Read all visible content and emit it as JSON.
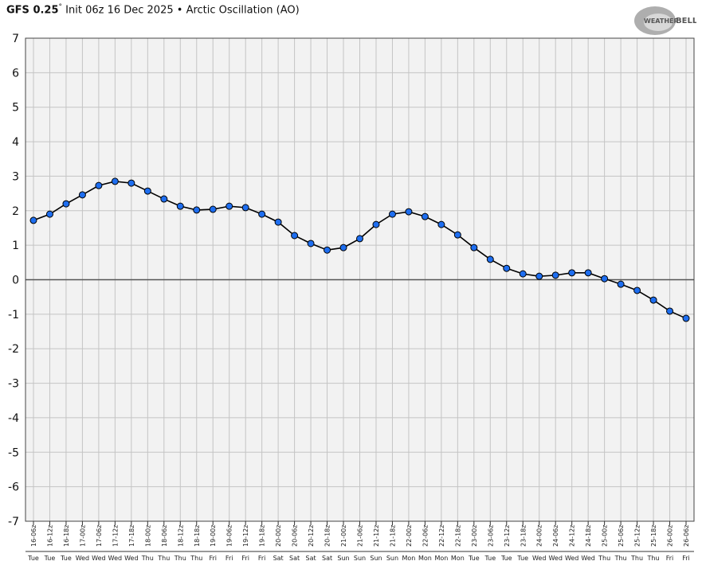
{
  "header": {
    "model": "GFS 0.25",
    "degree": "°",
    "init": "Init 06z 16 Dec 2025",
    "bullet": "•",
    "product": "Arctic Oscillation (AO)"
  },
  "logo": {
    "text": "WEATHERBELL"
  },
  "chart_data": {
    "type": "line",
    "title": "",
    "xlabel": "",
    "ylabel": "",
    "ylim": [
      -7,
      7
    ],
    "yticks": [
      7,
      6,
      5,
      4,
      3,
      2,
      1,
      0,
      -1,
      -2,
      -3,
      -4,
      -5,
      -6,
      -7
    ],
    "grid": true,
    "zero_line": true,
    "colors": {
      "line": "#000000",
      "marker": "#1e6ef0",
      "plot_bg": "#f2f2f2",
      "grid": "#c4c4c4"
    },
    "x": [
      "16-06z",
      "16-12z",
      "16-18z",
      "17-00z",
      "17-06z",
      "17-12z",
      "17-18z",
      "18-00z",
      "18-06z",
      "18-12z",
      "18-18z",
      "19-00z",
      "19-06z",
      "19-12z",
      "19-18z",
      "20-00z",
      "20-06z",
      "20-12z",
      "20-18z",
      "21-00z",
      "21-06z",
      "21-12z",
      "21-18z",
      "22-00z",
      "22-06z",
      "22-12z",
      "22-18z",
      "23-00z",
      "23-06z",
      "23-12z",
      "23-18z",
      "24-00z",
      "24-06z",
      "24-12z",
      "24-18z",
      "25-00z",
      "25-06z",
      "25-12z",
      "25-18z",
      "26-00z",
      "26-06z"
    ],
    "days": [
      "Tue",
      "Tue",
      "Tue",
      "Wed",
      "Wed",
      "Wed",
      "Wed",
      "Thu",
      "Thu",
      "Thu",
      "Thu",
      "Fri",
      "Fri",
      "Fri",
      "Fri",
      "Sat",
      "Sat",
      "Sat",
      "Sat",
      "Sun",
      "Sun",
      "Sun",
      "Sun",
      "Mon",
      "Mon",
      "Mon",
      "Mon",
      "Tue",
      "Tue",
      "Tue",
      "Tue",
      "Wed",
      "Wed",
      "Wed",
      "Wed",
      "Thu",
      "Thu",
      "Thu",
      "Thu",
      "Fri",
      "Fri"
    ],
    "values": [
      1.72,
      1.9,
      2.2,
      2.46,
      2.73,
      2.85,
      2.8,
      2.57,
      2.34,
      2.13,
      2.02,
      2.04,
      2.13,
      2.09,
      1.9,
      1.67,
      1.28,
      1.05,
      0.86,
      0.93,
      1.19,
      1.6,
      1.9,
      1.97,
      1.83,
      1.6,
      1.3,
      0.93,
      0.59,
      0.33,
      0.17,
      0.1,
      0.13,
      0.2,
      0.2,
      0.03,
      -0.13,
      -0.31,
      -0.59,
      -0.91,
      -1.12
    ]
  }
}
